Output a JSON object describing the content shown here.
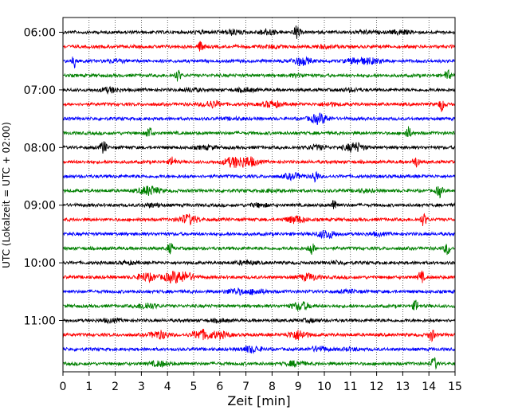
{
  "chart_data": {
    "type": "line",
    "title": "",
    "xlabel": "Zeit  [min]",
    "ylabel": "UTC (Lokalzeit = UTC + 02:00)",
    "xlim": [
      0,
      15
    ],
    "x_ticks": [
      "0",
      "1",
      "2",
      "3",
      "4",
      "5",
      "6",
      "7",
      "8",
      "9",
      "10",
      "11",
      "12",
      "13",
      "14",
      "15"
    ],
    "y_tick_labels": [
      "06:00",
      "07:00",
      "08:00",
      "09:00",
      "10:00",
      "11:00"
    ],
    "grid": "vertical dotted",
    "legend": "none",
    "trace_interval_minutes": 15,
    "trace_colors": [
      "#000000",
      "#ff0000",
      "#0000ff",
      "#008000"
    ],
    "traces": [
      {
        "start": "06:00",
        "color": "black",
        "events": [
          [
            5.3,
            0.12
          ],
          [
            6.5,
            0.3
          ],
          [
            7.8,
            0.35
          ],
          [
            8.95,
            0.9
          ],
          [
            11.5,
            0.15
          ],
          [
            12.9,
            0.25
          ]
        ]
      },
      {
        "start": "06:15",
        "color": "red",
        "events": [
          [
            5.3,
            0.8
          ],
          [
            8.0,
            0.15
          ],
          [
            10.0,
            0.15
          ]
        ]
      },
      {
        "start": "06:30",
        "color": "blue",
        "events": [
          [
            0.45,
            0.8
          ],
          [
            2.0,
            0.15
          ],
          [
            9.1,
            0.5
          ],
          [
            11.2,
            0.35
          ],
          [
            11.8,
            0.3
          ]
        ]
      },
      {
        "start": "06:45",
        "color": "green",
        "events": [
          [
            4.4,
            0.7
          ],
          [
            9.0,
            0.15
          ],
          [
            14.7,
            0.7
          ]
        ]
      },
      {
        "start": "07:00",
        "color": "black",
        "events": [
          [
            1.8,
            0.3
          ],
          [
            4.9,
            0.2
          ],
          [
            7.0,
            0.2
          ],
          [
            11.0,
            0.15
          ]
        ]
      },
      {
        "start": "07:15",
        "color": "red",
        "events": [
          [
            5.7,
            0.4
          ],
          [
            8.0,
            0.4
          ],
          [
            10.2,
            0.2
          ],
          [
            14.5,
            0.8
          ]
        ]
      },
      {
        "start": "07:30",
        "color": "blue",
        "events": [
          [
            9.8,
            0.6
          ],
          [
            6.5,
            0.1
          ]
        ]
      },
      {
        "start": "07:45",
        "color": "green",
        "events": [
          [
            3.3,
            0.8
          ],
          [
            13.2,
            0.8
          ]
        ]
      },
      {
        "start": "08:00",
        "color": "black",
        "events": [
          [
            1.55,
            0.9
          ],
          [
            5.5,
            0.2
          ],
          [
            9.7,
            0.25
          ],
          [
            11.15,
            0.6
          ]
        ]
      },
      {
        "start": "08:15",
        "color": "red",
        "events": [
          [
            4.2,
            0.7
          ],
          [
            6.5,
            0.6
          ],
          [
            7.1,
            0.6
          ],
          [
            13.5,
            0.7
          ]
        ]
      },
      {
        "start": "08:30",
        "color": "blue",
        "events": [
          [
            8.8,
            0.35
          ],
          [
            9.65,
            0.8
          ]
        ]
      },
      {
        "start": "08:45",
        "color": "green",
        "events": [
          [
            3.3,
            0.6
          ],
          [
            8.0,
            0.12
          ],
          [
            11.5,
            0.15
          ],
          [
            14.4,
            0.8
          ]
        ]
      },
      {
        "start": "09:00",
        "color": "black",
        "events": [
          [
            3.4,
            0.2
          ],
          [
            7.5,
            0.2
          ],
          [
            10.4,
            0.8
          ]
        ]
      },
      {
        "start": "09:15",
        "color": "red",
        "events": [
          [
            4.8,
            0.6
          ],
          [
            8.9,
            0.45
          ],
          [
            13.8,
            0.8
          ]
        ]
      },
      {
        "start": "09:30",
        "color": "blue",
        "events": [
          [
            10.1,
            0.5
          ],
          [
            12.0,
            0.15
          ]
        ]
      },
      {
        "start": "09:45",
        "color": "green",
        "events": [
          [
            4.1,
            0.7
          ],
          [
            9.5,
            0.8
          ],
          [
            14.7,
            0.8
          ]
        ]
      },
      {
        "start": "10:00",
        "color": "black",
        "events": [
          [
            2.5,
            0.15
          ],
          [
            7.0,
            0.2
          ],
          [
            10.5,
            0.15
          ]
        ]
      },
      {
        "start": "10:15",
        "color": "red",
        "events": [
          [
            3.2,
            0.5
          ],
          [
            4.2,
            0.6
          ],
          [
            4.7,
            0.5
          ],
          [
            9.4,
            0.4
          ],
          [
            13.7,
            0.8
          ]
        ]
      },
      {
        "start": "10:30",
        "color": "blue",
        "events": [
          [
            6.6,
            0.35
          ],
          [
            7.4,
            0.3
          ],
          [
            11.0,
            0.15
          ]
        ]
      },
      {
        "start": "10:45",
        "color": "green",
        "events": [
          [
            3.2,
            0.4
          ],
          [
            9.1,
            0.5
          ],
          [
            13.5,
            0.7
          ]
        ]
      },
      {
        "start": "11:00",
        "color": "black",
        "events": [
          [
            1.8,
            0.2
          ],
          [
            6.0,
            0.15
          ],
          [
            9.5,
            0.15
          ]
        ]
      },
      {
        "start": "11:15",
        "color": "red",
        "events": [
          [
            3.7,
            0.5
          ],
          [
            5.3,
            0.6
          ],
          [
            6.0,
            0.4
          ],
          [
            9.0,
            0.6
          ],
          [
            14.1,
            0.8
          ]
        ]
      },
      {
        "start": "11:30",
        "color": "blue",
        "events": [
          [
            7.2,
            0.4
          ],
          [
            9.8,
            0.3
          ],
          [
            11.0,
            0.15
          ]
        ]
      },
      {
        "start": "11:45",
        "color": "green",
        "events": [
          [
            3.7,
            0.3
          ],
          [
            8.9,
            0.3
          ],
          [
            14.2,
            0.8
          ]
        ]
      }
    ]
  }
}
